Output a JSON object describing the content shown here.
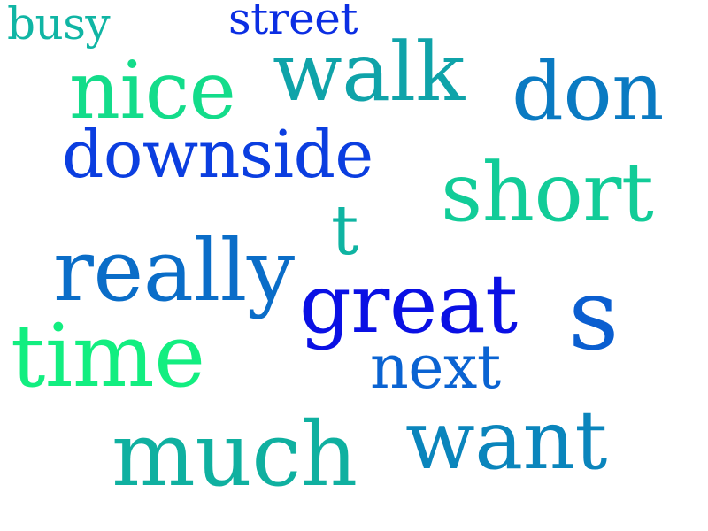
{
  "words": [
    {
      "text": "great",
      "color": "#0a10e4"
    },
    {
      "text": "nice",
      "color": "#13dc8a"
    },
    {
      "text": "walk",
      "color": "#0fa3a9"
    },
    {
      "text": "don",
      "color": "#0a7ac2"
    },
    {
      "text": "downside",
      "color": "#0b3ee0"
    },
    {
      "text": "short",
      "color": "#12cc98"
    },
    {
      "text": "really",
      "color": "#0a6dc8"
    },
    {
      "text": "t",
      "color": "#0fb4a2"
    },
    {
      "text": "s",
      "color": "#0a5ed0"
    },
    {
      "text": "time",
      "color": "#12ee80"
    },
    {
      "text": "next",
      "color": "#0a63d2"
    },
    {
      "text": "want",
      "color": "#0a85bc"
    },
    {
      "text": "much",
      "color": "#0fb0a0"
    },
    {
      "text": "busy",
      "color": "#10b5a4"
    },
    {
      "text": "street",
      "color": "#0b2ee3"
    }
  ]
}
